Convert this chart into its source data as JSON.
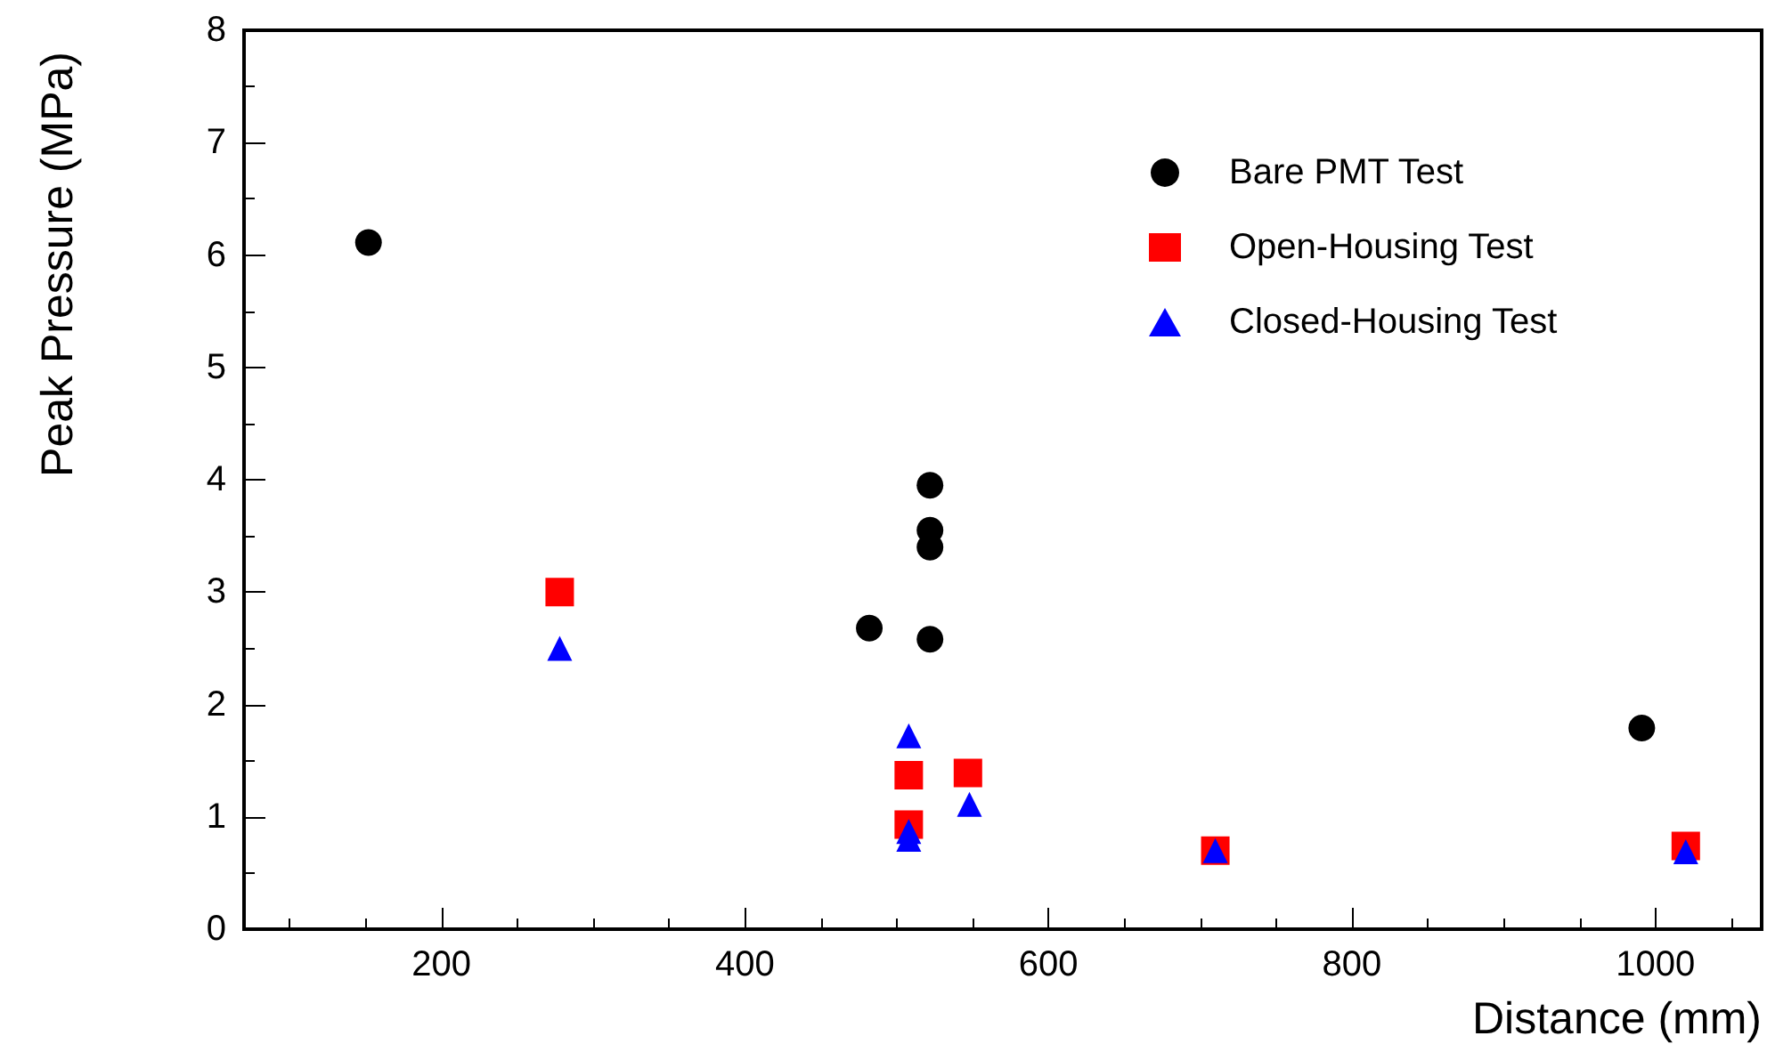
{
  "chart_data": {
    "type": "scatter",
    "xlabel": "Distance (mm)",
    "ylabel": "Peak Pressure (MPa)",
    "xlim": [
      70,
      1070
    ],
    "xticks": [
      200,
      400,
      600,
      800,
      {
        "value": 1000,
        "label": "1000"
      }
    ],
    "ylim": [
      0,
      8
    ],
    "yticks": [
      0,
      1,
      2,
      3,
      4,
      5,
      6,
      7,
      8
    ],
    "grid": false,
    "legend": "top right",
    "series": [
      {
        "name": "Bare PMT Test",
        "color": "#000000",
        "marker": "circle",
        "x": [
          152,
          482,
          522,
          522,
          522,
          522,
          991
        ],
        "values": [
          6.11,
          2.68,
          2.58,
          3.95,
          3.55,
          3.4,
          1.79
        ]
      },
      {
        "name": "Open-Housing Test",
        "color": "#ff0000",
        "marker": "square",
        "x": [
          278,
          508,
          508,
          547,
          710,
          1020
        ],
        "values": [
          3.0,
          1.37,
          0.93,
          1.39,
          0.7,
          0.74
        ]
      },
      {
        "name": "Closed-Housing Test",
        "color": "#0000ff",
        "marker": "triangle",
        "x": [
          278,
          508,
          508,
          508,
          548,
          710,
          1020
        ],
        "values": [
          2.5,
          1.72,
          0.87,
          0.8,
          1.11,
          0.7,
          0.69
        ]
      }
    ]
  }
}
